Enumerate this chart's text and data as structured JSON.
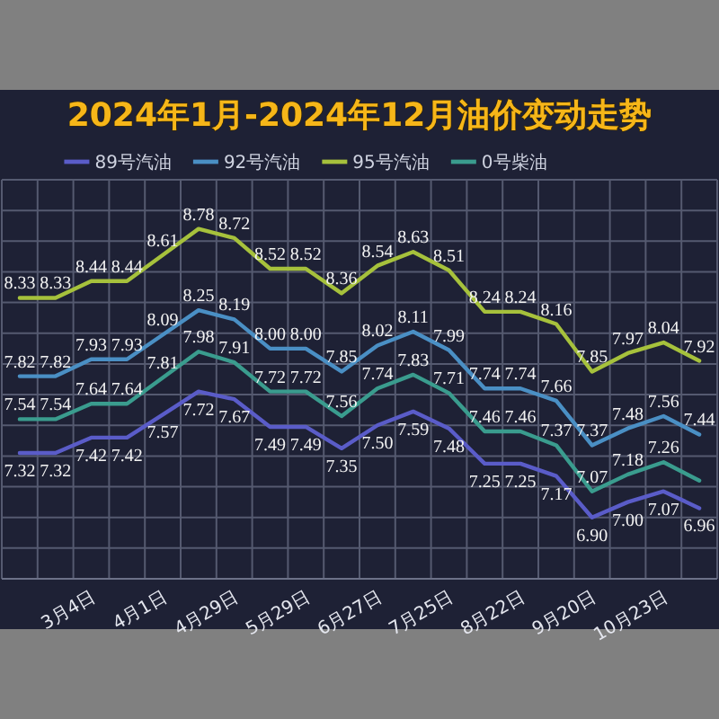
{
  "chart_data": {
    "type": "line",
    "title": "2024年1月-2024年12月油价变动走势",
    "categories": [
      null,
      null,
      "3月4日",
      null,
      "4月1日",
      null,
      "4月29日",
      null,
      "5月29日",
      null,
      "6月27日",
      null,
      "7月25日",
      null,
      "8月22日",
      null,
      "9月20日",
      null,
      "10月23日",
      null
    ],
    "series": [
      {
        "name": "89号汽油",
        "color": "#5a5cc8",
        "values": [
          7.32,
          7.32,
          7.42,
          7.42,
          7.57,
          7.72,
          7.67,
          7.49,
          7.49,
          7.35,
          7.5,
          7.59,
          7.48,
          7.25,
          7.25,
          7.17,
          6.9,
          7.0,
          7.07,
          6.96
        ],
        "value_labels": [
          "7.32",
          "7.32",
          "7.42",
          "7.42",
          "7.57",
          "7.72",
          "7.67",
          "7.49",
          "7.49",
          "7.35",
          "7.50",
          "7.59",
          "7.48",
          "7.25",
          "7.25",
          "7.17",
          "6.90",
          "7.00",
          "7.07",
          "6.96"
        ]
      },
      {
        "name": "92号汽油",
        "color": "#4a8fc4",
        "values": [
          7.82,
          7.82,
          7.93,
          7.93,
          8.09,
          8.25,
          8.19,
          8.0,
          8.0,
          7.85,
          8.02,
          8.11,
          7.99,
          7.74,
          7.74,
          7.66,
          7.37,
          7.48,
          7.56,
          7.44
        ],
        "value_labels": [
          "7.82",
          "7.82",
          "7.93",
          "7.93",
          "8.09",
          "8.25",
          "8.19",
          "8.00",
          "8.00",
          "7.85",
          "8.02",
          "8.11",
          "7.99",
          "7.74",
          "7.74",
          "7.66",
          "7.37",
          "7.48",
          "7.56",
          "7.44"
        ]
      },
      {
        "name": "95号汽油",
        "color": "#a6c13c",
        "values": [
          8.33,
          8.33,
          8.44,
          8.44,
          8.61,
          8.78,
          8.72,
          8.52,
          8.52,
          8.36,
          8.54,
          8.63,
          8.51,
          8.24,
          8.24,
          8.16,
          7.85,
          7.97,
          8.04,
          7.92
        ],
        "value_labels": [
          "8.33",
          "8.33",
          "8.44",
          "8.44",
          "8.61",
          "8.78",
          "8.72",
          "8.52",
          "8.52",
          "8.36",
          "8.54",
          "8.63",
          "8.51",
          "8.24",
          "8.24",
          "8.16",
          "7.85",
          "7.97",
          "8.04",
          "7.92"
        ]
      },
      {
        "name": "0号柴油",
        "color": "#3a9c8e",
        "values": [
          7.54,
          7.54,
          7.64,
          7.64,
          7.81,
          7.98,
          7.91,
          7.72,
          7.72,
          7.56,
          7.74,
          7.83,
          7.71,
          7.46,
          7.46,
          7.37,
          7.07,
          7.18,
          7.26,
          7.14
        ],
        "value_labels": [
          "7.54",
          "7.54",
          "7.64",
          "7.64",
          "7.81",
          "7.98",
          "7.91",
          "7.72",
          "7.72",
          "7.56",
          "7.74",
          "7.83",
          "7.71",
          "7.46",
          "7.46",
          "7.37",
          "7.07",
          "7.18",
          "7.26",
          null
        ]
      }
    ],
    "ylim": [
      6.5,
      9.1
    ],
    "yticks": [
      {
        "value": 6.5,
        "label": null
      },
      {
        "value": 6.7,
        "label": null
      },
      {
        "value": 6.9,
        "label": null
      },
      {
        "value": 7.1,
        "label": null
      },
      {
        "value": 7.3,
        "label": null
      },
      {
        "value": 7.5,
        "label": null
      },
      {
        "value": 7.7,
        "label": null
      },
      {
        "value": 7.9,
        "label": null
      },
      {
        "value": 8.1,
        "label": null
      },
      {
        "value": 8.3,
        "label": null
      },
      {
        "value": 8.5,
        "label": null
      },
      {
        "value": 8.7,
        "label": null
      },
      {
        "value": 8.9,
        "label": null
      },
      {
        "value": 9.1,
        "label": null
      }
    ],
    "tick_labels": "x",
    "grid": true,
    "legend": "top",
    "marker": "none"
  }
}
